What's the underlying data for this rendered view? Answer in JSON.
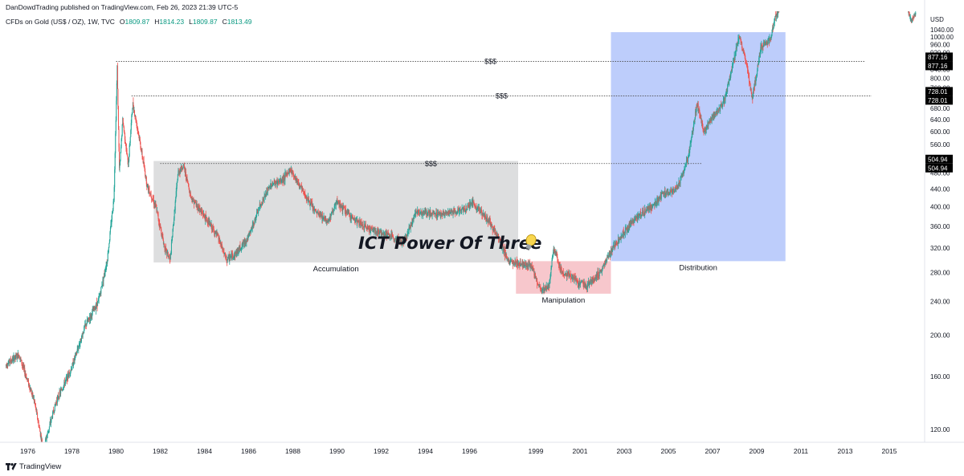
{
  "header": {
    "published": "DanDowdTrading published on TradingView.com, Feb 26, 2023 21:39 UTC-5"
  },
  "legend": {
    "symbol": "CFDs on Gold (US$ / OZ), 1W, TVC",
    "open_label": "O",
    "open": "1809.87",
    "high_label": "H",
    "high": "1814.23",
    "low_label": "L",
    "low": "1809.87",
    "close_label": "C",
    "close": "1813.49"
  },
  "footer": {
    "brand": "TradingView",
    "logo_icon": "tradingview-logo-icon"
  },
  "colors": {
    "up": "#26a69a",
    "down": "#ef5350",
    "accumulation": "#d9dadb",
    "manipulation": "#f6c1c6",
    "distribution": "#b6c8fb",
    "label_bg": "#000000",
    "grid_text": "#131722"
  },
  "chart_data": {
    "type": "candlestick",
    "title": "ICT Power Of Three",
    "title_icon": "lightbulb-icon",
    "currency": "USD",
    "y_scale": "log",
    "ylim": [
      112,
      1150
    ],
    "xlim": [
      1975.0,
      2016.6
    ],
    "y_ticks": [
      "120.00",
      "160.00",
      "200.00",
      "240.00",
      "280.00",
      "320.00",
      "360.00",
      "400.00",
      "440.00",
      "480.00",
      "520.00",
      "560.00",
      "600.00",
      "640.00",
      "680.00",
      "720.00",
      "760.00",
      "800.00",
      "840.00",
      "880.00",
      "920.00",
      "960.00",
      "1000.00",
      "1040.00"
    ],
    "x_ticks": [
      "1976",
      "1978",
      "1980",
      "1982",
      "1984",
      "1986",
      "1988",
      "1990",
      "1992",
      "1994",
      "1996",
      "1999",
      "2001",
      "2003",
      "2005",
      "2007",
      "2009",
      "2011",
      "2013",
      "2015"
    ],
    "price_labels": [
      {
        "value": 877.16,
        "text": "877.16"
      },
      {
        "value": 728.01,
        "text": "728.01"
      },
      {
        "value": 504.94,
        "text": "504.94"
      }
    ],
    "levels": [
      {
        "price": 877.16,
        "x_from": 1980.0,
        "x_to": 2013.9,
        "label": "$$$"
      },
      {
        "price": 728.01,
        "x_from": 1980.7,
        "x_to": 2014.2,
        "label": "$$$"
      },
      {
        "price": 504.94,
        "x_from": 1982.0,
        "x_to": 2006.5,
        "label": "$$$"
      }
    ],
    "zones": [
      {
        "name": "Accumulation",
        "x_from": 1981.7,
        "x_to": 1998.2,
        "y_from": 296,
        "y_to": 512,
        "fill": "accumulation"
      },
      {
        "name": "Manipulation",
        "x_from": 1998.1,
        "x_to": 2002.4,
        "y_from": 250,
        "y_to": 298,
        "fill": "manipulation"
      },
      {
        "name": "Distribution",
        "x_from": 2002.4,
        "x_to": 2010.3,
        "y_from": 298,
        "y_to": 1027,
        "fill": "distribution"
      }
    ],
    "path": [
      [
        1975.0,
        170
      ],
      [
        1975.6,
        180
      ],
      [
        1976.3,
        140
      ],
      [
        1976.7,
        108
      ],
      [
        1977.3,
        140
      ],
      [
        1978.0,
        168
      ],
      [
        1978.6,
        210
      ],
      [
        1979.2,
        240
      ],
      [
        1979.6,
        300
      ],
      [
        1979.9,
        420
      ],
      [
        1980.05,
        850
      ],
      [
        1980.15,
        480
      ],
      [
        1980.3,
        640
      ],
      [
        1980.55,
        500
      ],
      [
        1980.75,
        700
      ],
      [
        1981.0,
        600
      ],
      [
        1981.4,
        450
      ],
      [
        1981.8,
        400
      ],
      [
        1982.2,
        320
      ],
      [
        1982.45,
        300
      ],
      [
        1982.8,
        480
      ],
      [
        1983.05,
        500
      ],
      [
        1983.4,
        420
      ],
      [
        1984.0,
        380
      ],
      [
        1984.6,
        340
      ],
      [
        1985.0,
        300
      ],
      [
        1985.4,
        310
      ],
      [
        1986.0,
        340
      ],
      [
        1986.5,
        400
      ],
      [
        1987.0,
        450
      ],
      [
        1987.5,
        460
      ],
      [
        1987.9,
        490
      ],
      [
        1988.4,
        440
      ],
      [
        1989.0,
        390
      ],
      [
        1989.6,
        370
      ],
      [
        1990.0,
        410
      ],
      [
        1990.6,
        380
      ],
      [
        1991.2,
        360
      ],
      [
        1991.8,
        350
      ],
      [
        1992.5,
        340
      ],
      [
        1993.0,
        330
      ],
      [
        1993.6,
        390
      ],
      [
        1994.2,
        385
      ],
      [
        1995.0,
        385
      ],
      [
        1995.8,
        395
      ],
      [
        1996.1,
        410
      ],
      [
        1996.8,
        375
      ],
      [
        1997.3,
        340
      ],
      [
        1997.8,
        295
      ],
      [
        1998.2,
        295
      ],
      [
        1998.8,
        290
      ],
      [
        1999.2,
        255
      ],
      [
        1999.6,
        260
      ],
      [
        1999.8,
        320
      ],
      [
        2000.2,
        280
      ],
      [
        2000.8,
        270
      ],
      [
        2001.3,
        260
      ],
      [
        2001.9,
        280
      ],
      [
        2002.5,
        320
      ],
      [
        2003.0,
        350
      ],
      [
        2003.6,
        380
      ],
      [
        2004.2,
        400
      ],
      [
        2004.8,
        430
      ],
      [
        2005.4,
        440
      ],
      [
        2005.9,
        520
      ],
      [
        2006.3,
        700
      ],
      [
        2006.6,
        600
      ],
      [
        2007.0,
        650
      ],
      [
        2007.5,
        700
      ],
      [
        2007.9,
        850
      ],
      [
        2008.2,
        1010
      ],
      [
        2008.5,
        880
      ],
      [
        2008.8,
        720
      ],
      [
        2009.2,
        950
      ],
      [
        2009.6,
        980
      ],
      [
        2009.85,
        1120
      ],
      [
        2010.2,
        1220
      ]
    ],
    "tail_segment": [
      [
        2015.8,
        1180
      ],
      [
        2016.0,
        1090
      ],
      [
        2016.2,
        1140
      ]
    ]
  }
}
